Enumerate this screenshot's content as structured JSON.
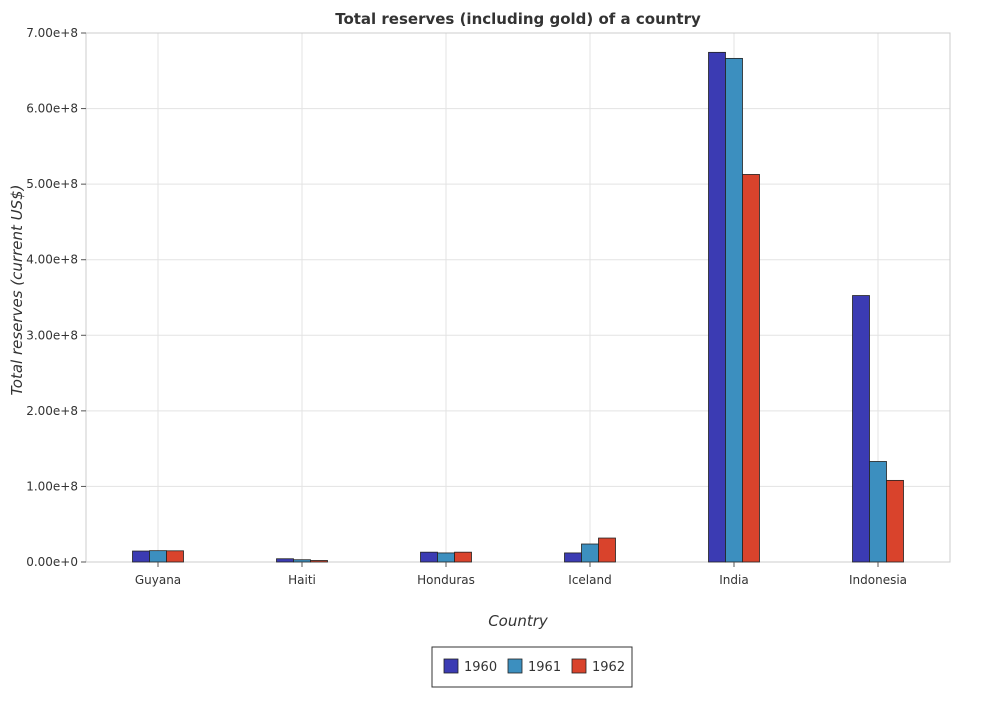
{
  "chart_data": {
    "type": "bar",
    "title": "Total reserves (including gold) of a country",
    "xlabel": "Country",
    "ylabel": "Total reserves (current US$)",
    "categories": [
      "Guyana",
      "Haiti",
      "Honduras",
      "Iceland",
      "India",
      "Indonesia"
    ],
    "series": [
      {
        "name": "1960",
        "color": "#3b3bb3",
        "values": [
          14500000,
          4300000,
          13000000,
          12000000,
          674400000,
          352600000
        ]
      },
      {
        "name": "1961",
        "color": "#3c8fbf",
        "values": [
          15000000,
          3000000,
          12000000,
          23800000,
          666400000,
          133000000
        ]
      },
      {
        "name": "1962",
        "color": "#d9432c",
        "values": [
          14800000,
          2000000,
          13000000,
          31700000,
          512800000,
          108000000
        ]
      }
    ],
    "ylim": [
      0,
      700000000
    ],
    "yticks": [
      0,
      100000000,
      200000000,
      300000000,
      400000000,
      500000000,
      600000000,
      700000000
    ],
    "ytick_labels": [
      "0.00e+0",
      "1.00e+8",
      "2.00e+8",
      "3.00e+8",
      "4.00e+8",
      "5.00e+8",
      "6.00e+8",
      "7.00e+8"
    ],
    "grid": true,
    "legend_position": "bottom-center"
  }
}
